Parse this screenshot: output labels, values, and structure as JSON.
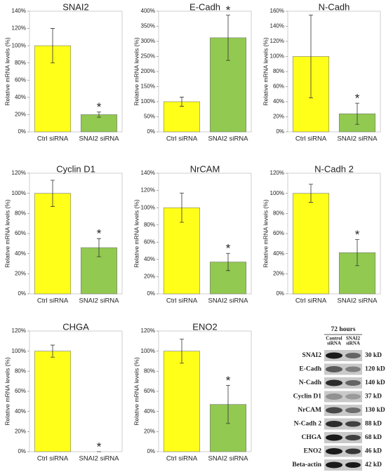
{
  "chart_data": [
    {
      "type": "bar",
      "title": "SNAI2",
      "y_label": "Relative mRNA levels (%)",
      "categories": [
        "Ctrl siRNA",
        "SNAI2 siRNA"
      ],
      "values": [
        100,
        20
      ],
      "errors": [
        20,
        3
      ],
      "colors": [
        "#ffff1a",
        "#92c950"
      ],
      "annotation": "*",
      "ylim": [
        0,
        140
      ],
      "yticks": [
        {
          "value": 0,
          "label": "0%"
        },
        {
          "value": 20,
          "label": "20%"
        },
        {
          "value": 40,
          "label": "40%"
        },
        {
          "value": 60,
          "label": "60%"
        },
        {
          "value": 80,
          "label": "80%"
        },
        {
          "value": 100,
          "label": "100%"
        },
        {
          "value": 120,
          "label": "120%"
        },
        {
          "value": 140,
          "label": "140%"
        }
      ]
    },
    {
      "type": "bar",
      "title": "E-Cadh",
      "y_label": "Relative mRNA levels (%)",
      "categories": [
        "Ctrl siRNA",
        "SNAI2 siRNA"
      ],
      "values": [
        100,
        312
      ],
      "errors": [
        15,
        75
      ],
      "colors": [
        "#ffff1a",
        "#92c950"
      ],
      "annotation": "*",
      "ylim": [
        0,
        400
      ],
      "yticks": [
        {
          "value": 0,
          "label": "0%"
        },
        {
          "value": 50,
          "label": "50%"
        },
        {
          "value": 100,
          "label": "100%"
        },
        {
          "value": 150,
          "label": "150%"
        },
        {
          "value": 200,
          "label": "200%"
        },
        {
          "value": 250,
          "label": "250%"
        },
        {
          "value": 300,
          "label": "300%"
        },
        {
          "value": 350,
          "label": "350%"
        },
        {
          "value": 400,
          "label": "400%"
        }
      ]
    },
    {
      "type": "bar",
      "title": "N-Cadh",
      "y_label": "Relative mRNA levels (%)",
      "categories": [
        "Ctrl siRNA",
        "SNAI2 siRNA"
      ],
      "values": [
        100,
        24
      ],
      "errors": [
        55,
        14
      ],
      "colors": [
        "#ffff1a",
        "#92c950"
      ],
      "annotation": "*",
      "ylim": [
        0,
        160
      ],
      "yticks": [
        {
          "value": 0,
          "label": "0%"
        },
        {
          "value": 20,
          "label": "20%"
        },
        {
          "value": 40,
          "label": "40%"
        },
        {
          "value": 60,
          "label": "60%"
        },
        {
          "value": 80,
          "label": "80%"
        },
        {
          "value": 100,
          "label": "100%"
        },
        {
          "value": 120,
          "label": "120%"
        },
        {
          "value": 140,
          "label": "140%"
        },
        {
          "value": 160,
          "label": "160%"
        }
      ]
    },
    {
      "type": "bar",
      "title": "Cyclin D1",
      "y_label": "Relative mRNA levels (%)",
      "categories": [
        "Ctrl siRNA",
        "SNAI2 siRNA"
      ],
      "values": [
        100,
        46
      ],
      "errors": [
        13,
        9
      ],
      "colors": [
        "#ffff1a",
        "#92c950"
      ],
      "annotation": "*",
      "ylim": [
        0,
        120
      ],
      "yticks": [
        {
          "value": 0,
          "label": "0%"
        },
        {
          "value": 20,
          "label": "20%"
        },
        {
          "value": 40,
          "label": "40%"
        },
        {
          "value": 60,
          "label": "60%"
        },
        {
          "value": 80,
          "label": "80%"
        },
        {
          "value": 100,
          "label": "100%"
        },
        {
          "value": 120,
          "label": "120%"
        }
      ]
    },
    {
      "type": "bar",
      "title": "NrCAM",
      "y_label": "Relative mRNA levels (%)",
      "categories": [
        "Ctrl siRNA",
        "SNAI2 siRNA"
      ],
      "values": [
        100,
        37
      ],
      "errors": [
        17,
        10
      ],
      "colors": [
        "#ffff1a",
        "#92c950"
      ],
      "annotation": "*",
      "ylim": [
        0,
        140
      ],
      "yticks": [
        {
          "value": 0,
          "label": "0%"
        },
        {
          "value": 20,
          "label": "20%"
        },
        {
          "value": 40,
          "label": "40%"
        },
        {
          "value": 60,
          "label": "60%"
        },
        {
          "value": 80,
          "label": "80%"
        },
        {
          "value": 100,
          "label": "100%"
        },
        {
          "value": 120,
          "label": "120%"
        },
        {
          "value": 140,
          "label": "140%"
        }
      ]
    },
    {
      "type": "bar",
      "title": "N-Cadh 2",
      "y_label": "Relative mRNA levels (%)",
      "categories": [
        "Ctrl siRNA",
        "SNAI2 siRNA"
      ],
      "values": [
        100,
        41
      ],
      "errors": [
        9,
        13
      ],
      "colors": [
        "#ffff1a",
        "#92c950"
      ],
      "annotation": "*",
      "ylim": [
        0,
        120
      ],
      "yticks": [
        {
          "value": 0,
          "label": "0%"
        },
        {
          "value": 20,
          "label": "20%"
        },
        {
          "value": 40,
          "label": "40%"
        },
        {
          "value": 60,
          "label": "60%"
        },
        {
          "value": 80,
          "label": "80%"
        },
        {
          "value": 100,
          "label": "100%"
        },
        {
          "value": 120,
          "label": "120%"
        }
      ]
    },
    {
      "type": "bar",
      "title": "CHGA",
      "y_label": "Relative mRNA levels (%)",
      "categories": [
        "Ctrl siRNA",
        "SNAI2 siRNA"
      ],
      "values": [
        100,
        0
      ],
      "errors": [
        6,
        0
      ],
      "colors": [
        "#ffff1a",
        "#92c950"
      ],
      "annotation": "*",
      "ylim": [
        0,
        120
      ],
      "yticks": [
        {
          "value": 0,
          "label": "0%"
        },
        {
          "value": 20,
          "label": "20%"
        },
        {
          "value": 40,
          "label": "40%"
        },
        {
          "value": 60,
          "label": "60%"
        },
        {
          "value": 80,
          "label": "80%"
        },
        {
          "value": 100,
          "label": "100%"
        },
        {
          "value": 120,
          "label": "120%"
        }
      ]
    },
    {
      "type": "bar",
      "title": "ENO2",
      "y_label": "Relative mRNA levels (%)",
      "categories": [
        "Ctrl siRNA",
        "SNAI2 siRNA"
      ],
      "values": [
        100,
        47
      ],
      "errors": [
        12,
        19
      ],
      "colors": [
        "#ffff1a",
        "#92c950"
      ],
      "annotation": "*",
      "ylim": [
        0,
        120
      ],
      "yticks": [
        {
          "value": 0,
          "label": "0%"
        },
        {
          "value": 20,
          "label": "20%"
        },
        {
          "value": 40,
          "label": "40%"
        },
        {
          "value": 60,
          "label": "60%"
        },
        {
          "value": 80,
          "label": "80%"
        },
        {
          "value": 100,
          "label": "100%"
        },
        {
          "value": 120,
          "label": "120%"
        }
      ]
    }
  ],
  "blot": {
    "title": "72 hours",
    "columns": [
      [
        "Control",
        "siRNA"
      ],
      [
        "SNAI2",
        "siRNA"
      ]
    ],
    "rows": [
      {
        "label": "SNAI2",
        "size": "30 kD"
      },
      {
        "label": "E-Cadh",
        "size": "120 kD"
      },
      {
        "label": "N-Cadh",
        "size": "140 kD"
      },
      {
        "label": "Cyclin D1",
        "size": "37 kD"
      },
      {
        "label": "NrCAM",
        "size": "130 kD"
      },
      {
        "label": "N-Cadh 2",
        "size": "88 kD"
      },
      {
        "label": "CHGA",
        "size": "68 kD"
      },
      {
        "label": "ENO2",
        "size": "46 kD"
      },
      {
        "label": "Beta-actin",
        "size": "42 kD"
      }
    ]
  }
}
